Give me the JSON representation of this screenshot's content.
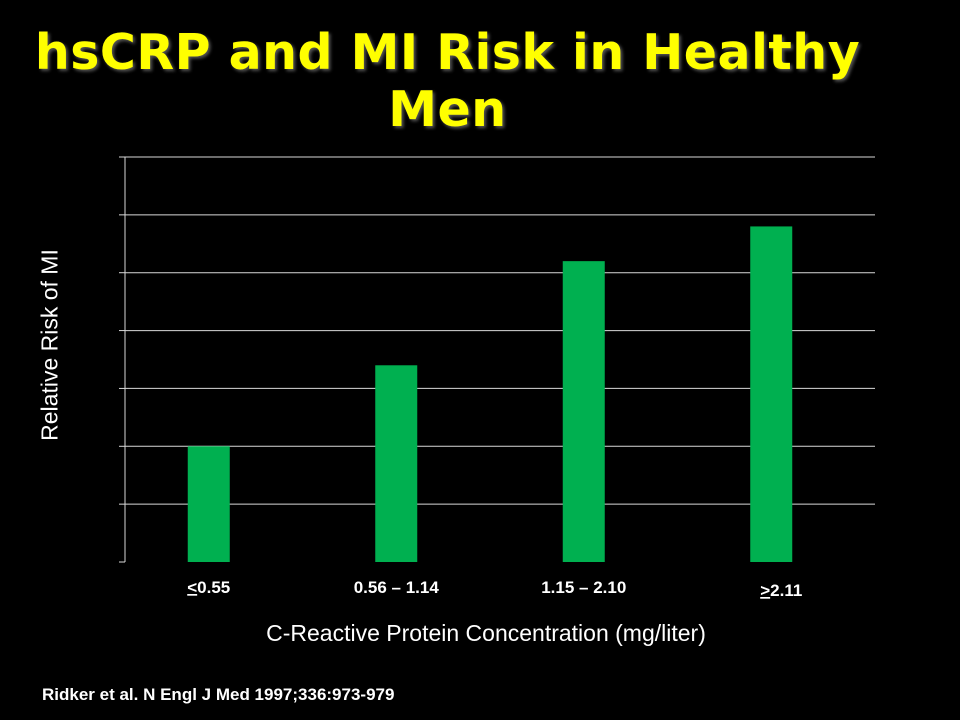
{
  "slide": {
    "title": "hsCRP and MI Risk in Healthy Men",
    "citation": "Ridker  et al. N Engl  J Med 1997;336:973-979"
  },
  "chart_data": {
    "type": "bar",
    "title": "hsCRP and MI Risk in Healthy Men",
    "xlabel": "C-Reactive  Protein Concentration (mg/liter)",
    "ylabel": "Relative Risk of MI",
    "categories": [
      "<0.55",
      "0.56 – 1.14",
      "1.15 – 2.10",
      ">2.11"
    ],
    "category_labels_display": [
      {
        "underlined": "<",
        "rest": "0.55"
      },
      {
        "underlined": "",
        "rest": "0.56 – 1.14"
      },
      {
        "underlined": "",
        "rest": "1.15 – 2.10"
      },
      {
        "underlined": ">",
        "rest": "2.11"
      }
    ],
    "values": [
      1.0,
      1.7,
      2.6,
      2.9
    ],
    "ylim": [
      0,
      3.5
    ],
    "ytick_step": 0.5,
    "show_y_tick_labels": false,
    "grid": true,
    "legend": "none",
    "colors": {
      "bar": "#00b050",
      "grid": "#d9d9d9",
      "axis_text": "#ffffff",
      "title": "#ffff00",
      "background": "#000000"
    }
  }
}
